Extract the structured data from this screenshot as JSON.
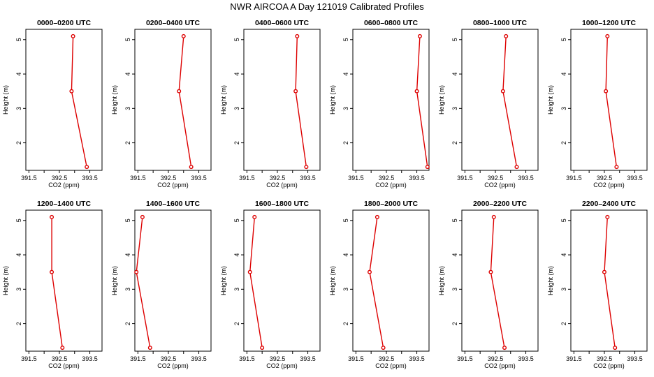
{
  "figure_title": "NWR AIRCOA A  Day 121019  Calibrated Profiles",
  "colors": {
    "line": "#dd0000",
    "axis": "#000000",
    "background": "#ffffff"
  },
  "chart_data": [
    {
      "type": "line",
      "title": "0000–0200 UTC",
      "xlabel": "CO2 (ppm)",
      "ylabel": "Height (m)",
      "xlim": [
        391.4,
        393.9
      ],
      "ylim": [
        1.2,
        5.3
      ],
      "xticks": [
        "391.5",
        "392.5",
        "393.5"
      ],
      "yticks": [
        "2",
        "3",
        "4",
        "5"
      ],
      "x": [
        392.95,
        392.9,
        393.4
      ],
      "y": [
        5.1,
        3.5,
        1.3
      ]
    },
    {
      "type": "line",
      "title": "0200–0400 UTC",
      "xlabel": "CO2 (ppm)",
      "ylabel": "Height (m)",
      "xlim": [
        391.4,
        393.9
      ],
      "ylim": [
        1.2,
        5.3
      ],
      "xticks": [
        "391.5",
        "392.5",
        "393.5"
      ],
      "yticks": [
        "2",
        "3",
        "4",
        "5"
      ],
      "x": [
        393.0,
        392.85,
        393.25
      ],
      "y": [
        5.1,
        3.5,
        1.3
      ]
    },
    {
      "type": "line",
      "title": "0400–0600 UTC",
      "xlabel": "CO2 (ppm)",
      "ylabel": "Height (m)",
      "xlim": [
        391.4,
        393.9
      ],
      "ylim": [
        1.2,
        5.3
      ],
      "xticks": [
        "391.5",
        "392.5",
        "393.5"
      ],
      "yticks": [
        "2",
        "3",
        "4",
        "5"
      ],
      "x": [
        393.15,
        393.1,
        393.45
      ],
      "y": [
        5.1,
        3.5,
        1.3
      ]
    },
    {
      "type": "line",
      "title": "0600–0800 UTC",
      "xlabel": "CO2 (ppm)",
      "ylabel": "Height (m)",
      "xlim": [
        391.4,
        393.9
      ],
      "ylim": [
        1.2,
        5.3
      ],
      "xticks": [
        "391.5",
        "392.5",
        "393.5"
      ],
      "yticks": [
        "2",
        "3",
        "4",
        "5"
      ],
      "x": [
        393.6,
        393.5,
        393.85
      ],
      "y": [
        5.1,
        3.5,
        1.3
      ]
    },
    {
      "type": "line",
      "title": "0800–1000 UTC",
      "xlabel": "CO2 (ppm)",
      "ylabel": "Height (m)",
      "xlim": [
        391.4,
        393.9
      ],
      "ylim": [
        1.2,
        5.3
      ],
      "xticks": [
        "391.5",
        "392.5",
        "393.5"
      ],
      "yticks": [
        "2",
        "3",
        "4",
        "5"
      ],
      "x": [
        392.85,
        392.75,
        393.2
      ],
      "y": [
        5.1,
        3.5,
        1.3
      ]
    },
    {
      "type": "line",
      "title": "1000–1200 UTC",
      "xlabel": "CO2 (ppm)",
      "ylabel": "Height (m)",
      "xlim": [
        391.4,
        393.9
      ],
      "ylim": [
        1.2,
        5.3
      ],
      "xticks": [
        "391.5",
        "392.5",
        "393.5"
      ],
      "yticks": [
        "2",
        "3",
        "4",
        "5"
      ],
      "x": [
        392.6,
        392.55,
        392.9
      ],
      "y": [
        5.1,
        3.5,
        1.3
      ]
    },
    {
      "type": "line",
      "title": "1200–1400 UTC",
      "xlabel": "CO2 (ppm)",
      "ylabel": "Height (m)",
      "xlim": [
        391.4,
        393.9
      ],
      "ylim": [
        1.2,
        5.3
      ],
      "xticks": [
        "391.5",
        "392.5",
        "393.5"
      ],
      "yticks": [
        "2",
        "3",
        "4",
        "5"
      ],
      "x": [
        392.25,
        392.25,
        392.6
      ],
      "y": [
        5.1,
        3.5,
        1.3
      ]
    },
    {
      "type": "line",
      "title": "1400–1600 UTC",
      "xlabel": "CO2 (ppm)",
      "ylabel": "Height (m)",
      "xlim": [
        391.4,
        393.9
      ],
      "ylim": [
        1.2,
        5.3
      ],
      "xticks": [
        "391.5",
        "392.5",
        "393.5"
      ],
      "yticks": [
        "2",
        "3",
        "4",
        "5"
      ],
      "x": [
        391.65,
        391.45,
        391.9
      ],
      "y": [
        5.1,
        3.5,
        1.3
      ]
    },
    {
      "type": "line",
      "title": "1600–1800 UTC",
      "xlabel": "CO2 (ppm)",
      "ylabel": "Height (m)",
      "xlim": [
        391.4,
        393.9
      ],
      "ylim": [
        1.2,
        5.3
      ],
      "xticks": [
        "391.5",
        "392.5",
        "393.5"
      ],
      "yticks": [
        "2",
        "3",
        "4",
        "5"
      ],
      "x": [
        391.75,
        391.6,
        392.0
      ],
      "y": [
        5.1,
        3.5,
        1.3
      ]
    },
    {
      "type": "line",
      "title": "1800–2000 UTC",
      "xlabel": "CO2 (ppm)",
      "ylabel": "Height (m)",
      "xlim": [
        391.4,
        393.9
      ],
      "ylim": [
        1.2,
        5.3
      ],
      "xticks": [
        "391.5",
        "392.5",
        "393.5"
      ],
      "yticks": [
        "2",
        "3",
        "4",
        "5"
      ],
      "x": [
        392.2,
        391.95,
        392.4
      ],
      "y": [
        5.1,
        3.5,
        1.3
      ]
    },
    {
      "type": "line",
      "title": "2000–2200 UTC",
      "xlabel": "CO2 (ppm)",
      "ylabel": "Height (m)",
      "xlim": [
        391.4,
        393.9
      ],
      "ylim": [
        1.2,
        5.3
      ],
      "xticks": [
        "391.5",
        "392.5",
        "393.5"
      ],
      "yticks": [
        "2",
        "3",
        "4",
        "5"
      ],
      "x": [
        392.45,
        392.35,
        392.8
      ],
      "y": [
        5.1,
        3.5,
        1.3
      ]
    },
    {
      "type": "line",
      "title": "2200–2400 UTC",
      "xlabel": "CO2 (ppm)",
      "ylabel": "Height (m)",
      "xlim": [
        391.4,
        393.9
      ],
      "ylim": [
        1.2,
        5.3
      ],
      "xticks": [
        "391.5",
        "392.5",
        "393.5"
      ],
      "yticks": [
        "2",
        "3",
        "4",
        "5"
      ],
      "x": [
        392.6,
        392.5,
        392.85
      ],
      "y": [
        5.1,
        3.5,
        1.3
      ]
    }
  ]
}
